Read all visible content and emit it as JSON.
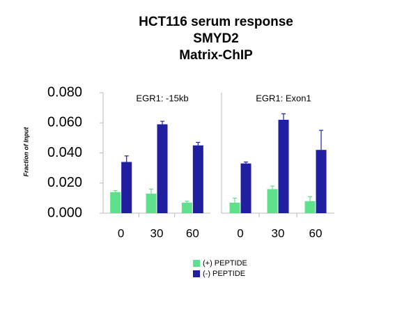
{
  "header": {
    "title": [
      "HCT116 serum response",
      "SMYD2",
      "Matrix-ChIP"
    ]
  },
  "y_label": "Fraction of Input",
  "chart_data": [
    {
      "type": "bar",
      "title": "EGR1: -15kb",
      "categories": [
        "0",
        "30",
        "60"
      ],
      "series": [
        {
          "name": "(+) PEPTIDE",
          "color": "#5fe08c",
          "values": [
            0.014,
            0.013,
            0.007
          ],
          "errors": [
            0.001,
            0.003,
            0.001
          ]
        },
        {
          "name": "(-) PEPTIDE",
          "color": "#1f1fa0",
          "values": [
            0.034,
            0.059,
            0.045
          ],
          "errors": [
            0.004,
            0.002,
            0.002
          ]
        }
      ],
      "ylim": [
        0,
        0.08
      ],
      "yticks": [
        {
          "value": 0,
          "label": "0.000"
        },
        {
          "value": 0.02,
          "label": "0.020"
        },
        {
          "value": 0.04,
          "label": "0.040"
        },
        {
          "value": 0.06,
          "label": "0.060"
        },
        {
          "value": 0.08,
          "label": "0.080"
        }
      ]
    },
    {
      "type": "bar",
      "title": "EGR1: Exon1",
      "categories": [
        "0",
        "30",
        "60"
      ],
      "series": [
        {
          "color": "#5fe08c",
          "values": [
            0.007,
            0.016,
            0.008
          ],
          "errors": [
            0.003,
            0.002,
            0.003
          ]
        },
        {
          "color": "#1f1fa0",
          "values": [
            0.033,
            0.062,
            0.042
          ],
          "errors": [
            0.001,
            0.004,
            0.013
          ]
        }
      ],
      "ylim": [
        0,
        0.08
      ]
    }
  ]
}
